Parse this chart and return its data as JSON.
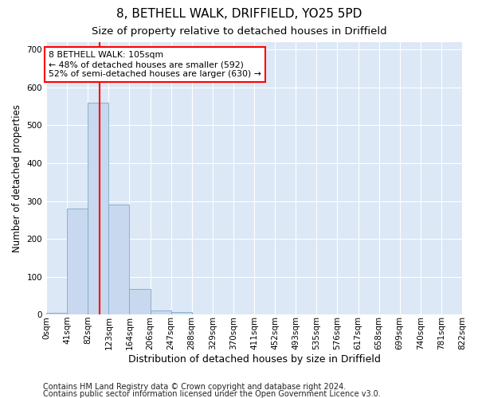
{
  "title1": "8, BETHELL WALK, DRIFFIELD, YO25 5PD",
  "title2": "Size of property relative to detached houses in Driffield",
  "xlabel": "Distribution of detached houses by size in Driffield",
  "ylabel": "Number of detached properties",
  "footer1": "Contains HM Land Registry data © Crown copyright and database right 2024.",
  "footer2": "Contains public sector information licensed under the Open Government Licence v3.0.",
  "bin_labels": [
    "0sqm",
    "41sqm",
    "82sqm",
    "123sqm",
    "164sqm",
    "206sqm",
    "247sqm",
    "288sqm",
    "329sqm",
    "370sqm",
    "411sqm",
    "452sqm",
    "493sqm",
    "535sqm",
    "576sqm",
    "617sqm",
    "658sqm",
    "699sqm",
    "740sqm",
    "781sqm",
    "822sqm"
  ],
  "bar_values": [
    5,
    280,
    560,
    290,
    68,
    12,
    8,
    0,
    0,
    0,
    0,
    0,
    0,
    0,
    0,
    0,
    0,
    0,
    0,
    0
  ],
  "bar_color": "#c8d8ee",
  "bar_edgecolor": "#7aaac8",
  "vline_x": 2.55,
  "vline_color": "red",
  "annotation_text": "8 BETHELL WALK: 105sqm\n← 48% of detached houses are smaller (592)\n52% of semi-detached houses are larger (630) →",
  "annotation_box_color": "white",
  "annotation_box_edgecolor": "red",
  "ylim": [
    0,
    720
  ],
  "yticks": [
    0,
    100,
    200,
    300,
    400,
    500,
    600,
    700
  ],
  "fig_background_color": "white",
  "plot_background_color": "#dce8f5",
  "grid_color": "white",
  "title1_fontsize": 11,
  "title2_fontsize": 9.5,
  "xlabel_fontsize": 9,
  "ylabel_fontsize": 8.5,
  "tick_fontsize": 7.5,
  "footer_fontsize": 7
}
